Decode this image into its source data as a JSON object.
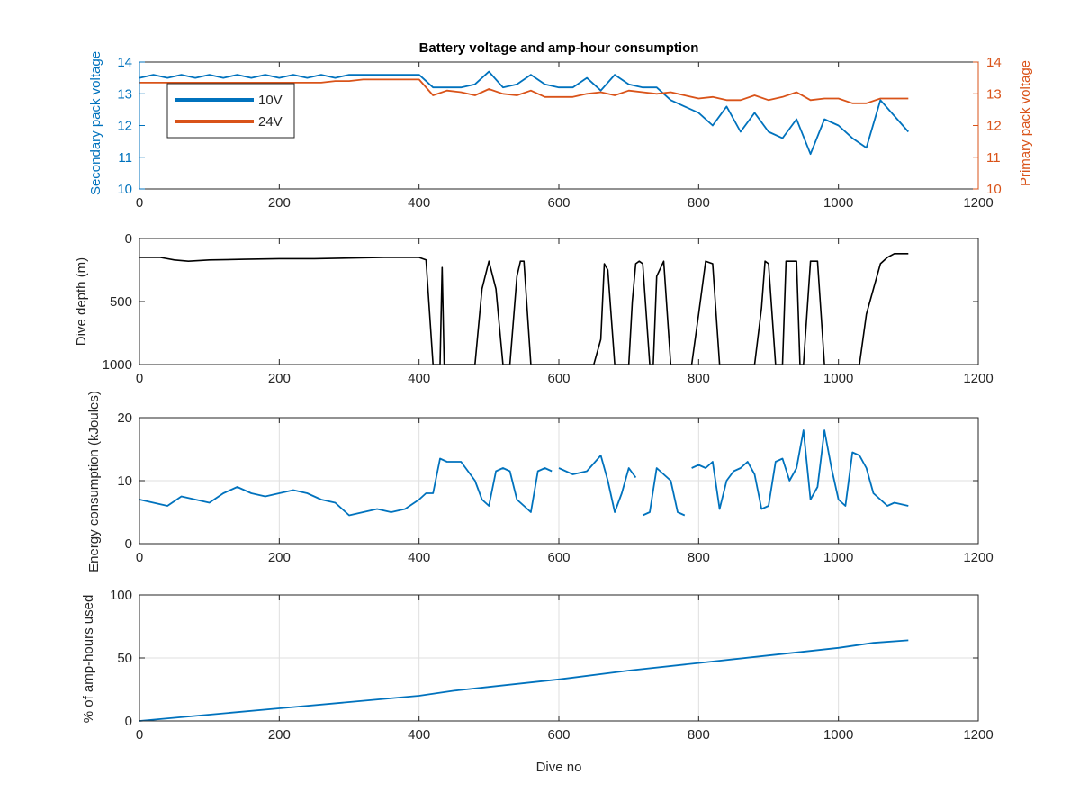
{
  "chart_data": [
    {
      "type": "line",
      "title": "Battery voltage and amp-hour consumption",
      "xlabel": "",
      "ylabel": "Secondary pack voltage",
      "ylabel_right": "Primary pack voltage",
      "xlim": [
        0,
        1200
      ],
      "ylim": [
        10,
        14
      ],
      "ylim_right": [
        10,
        14
      ],
      "xticks": [
        0,
        200,
        400,
        600,
        800,
        1000,
        1200
      ],
      "yticks": [
        10,
        11,
        12,
        13,
        14
      ],
      "yticks_right": [
        10,
        11,
        12,
        13,
        14
      ],
      "grid": false,
      "legend": "top-left",
      "series": [
        {
          "name": "10V",
          "color": "#0072BD",
          "axis": "left",
          "x": [
            0,
            20,
            40,
            60,
            80,
            100,
            120,
            140,
            160,
            180,
            200,
            220,
            240,
            260,
            280,
            300,
            320,
            340,
            360,
            380,
            400,
            420,
            440,
            460,
            480,
            500,
            520,
            540,
            560,
            580,
            600,
            620,
            640,
            660,
            680,
            700,
            720,
            740,
            760,
            780,
            800,
            820,
            840,
            860,
            880,
            900,
            920,
            940,
            960,
            980,
            1000,
            1020,
            1040,
            1060,
            1080,
            1100
          ],
          "y": [
            13.5,
            13.6,
            13.5,
            13.6,
            13.5,
            13.6,
            13.5,
            13.6,
            13.5,
            13.6,
            13.5,
            13.6,
            13.5,
            13.6,
            13.5,
            13.6,
            13.6,
            13.6,
            13.6,
            13.6,
            13.6,
            13.2,
            13.2,
            13.2,
            13.3,
            13.7,
            13.2,
            13.3,
            13.6,
            13.3,
            13.2,
            13.2,
            13.5,
            13.1,
            13.6,
            13.3,
            13.2,
            13.2,
            12.8,
            12.6,
            12.4,
            12.0,
            12.6,
            11.8,
            12.4,
            11.8,
            11.6,
            12.2,
            11.1,
            12.2,
            12.0,
            11.6,
            11.3,
            12.8,
            12.3,
            11.8
          ]
        },
        {
          "name": "24V",
          "color": "#D95319",
          "axis": "right",
          "x": [
            0,
            20,
            40,
            60,
            80,
            100,
            120,
            140,
            160,
            180,
            200,
            220,
            240,
            260,
            280,
            300,
            320,
            340,
            360,
            380,
            400,
            420,
            440,
            460,
            480,
            500,
            520,
            540,
            560,
            580,
            600,
            620,
            640,
            660,
            680,
            700,
            720,
            740,
            760,
            780,
            800,
            820,
            840,
            860,
            880,
            900,
            920,
            940,
            960,
            980,
            1000,
            1020,
            1040,
            1060,
            1080,
            1100
          ],
          "y": [
            13.35,
            13.35,
            13.35,
            13.35,
            13.35,
            13.35,
            13.35,
            13.35,
            13.35,
            13.35,
            13.35,
            13.35,
            13.35,
            13.35,
            13.4,
            13.4,
            13.45,
            13.45,
            13.45,
            13.45,
            13.45,
            12.95,
            13.1,
            13.05,
            12.95,
            13.15,
            13.0,
            12.95,
            13.1,
            12.9,
            12.9,
            12.9,
            13.0,
            13.05,
            12.95,
            13.1,
            13.05,
            13.0,
            13.05,
            12.95,
            12.85,
            12.9,
            12.8,
            12.8,
            12.95,
            12.8,
            12.9,
            13.05,
            12.8,
            12.85,
            12.85,
            12.7,
            12.7,
            12.85,
            12.85,
            12.85
          ]
        }
      ]
    },
    {
      "type": "line",
      "title": "",
      "xlabel": "",
      "ylabel": "Dive depth (m)",
      "xlim": [
        0,
        1200
      ],
      "ylim": [
        0,
        1000
      ],
      "y_reversed": true,
      "xticks": [
        0,
        200,
        400,
        600,
        800,
        1000,
        1200
      ],
      "yticks": [
        0,
        500,
        1000
      ],
      "grid": false,
      "series": [
        {
          "color": "#000000",
          "x": [
            0,
            10,
            30,
            50,
            70,
            100,
            150,
            200,
            250,
            300,
            350,
            380,
            400,
            410,
            420,
            425,
            430,
            433,
            436,
            440,
            450,
            470,
            480,
            490,
            500,
            510,
            520,
            530,
            540,
            545,
            550,
            560,
            565,
            570,
            580,
            600,
            620,
            640,
            650,
            660,
            665,
            670,
            680,
            690,
            700,
            705,
            710,
            715,
            720,
            730,
            735,
            740,
            750,
            760,
            770,
            780,
            790,
            800,
            810,
            820,
            830,
            840,
            850,
            860,
            870,
            880,
            890,
            895,
            900,
            910,
            920,
            925,
            930,
            940,
            945,
            950,
            960,
            965,
            970,
            980,
            1000,
            1010,
            1020,
            1030,
            1040,
            1050,
            1060,
            1070,
            1080,
            1100
          ],
          "y": [
            150,
            150,
            150,
            170,
            180,
            170,
            165,
            160,
            160,
            155,
            150,
            150,
            150,
            170,
            1000,
            1000,
            1000,
            230,
            1000,
            1000,
            1000,
            1000,
            1000,
            400,
            180,
            400,
            1000,
            1000,
            300,
            180,
            180,
            1000,
            1000,
            1000,
            1000,
            1000,
            1000,
            1000,
            1000,
            800,
            200,
            250,
            1000,
            1000,
            1000,
            500,
            200,
            180,
            200,
            1000,
            1000,
            300,
            180,
            1000,
            1000,
            1000,
            1000,
            600,
            180,
            200,
            1000,
            1000,
            1000,
            1000,
            1000,
            1000,
            550,
            180,
            200,
            1000,
            1000,
            180,
            180,
            180,
            1000,
            1000,
            180,
            180,
            180,
            1000,
            1000,
            1000,
            1000,
            1000,
            600,
            400,
            200,
            150,
            120,
            120
          ]
        }
      ]
    },
    {
      "type": "line",
      "title": "",
      "xlabel": "",
      "ylabel": "Energy consumption (kJoules)",
      "xlim": [
        0,
        1200
      ],
      "ylim": [
        0,
        20
      ],
      "xticks": [
        0,
        200,
        400,
        600,
        800,
        1000,
        1200
      ],
      "yticks": [
        0,
        10,
        20
      ],
      "grid": true,
      "series": [
        {
          "color": "#0072BD",
          "x": [
            0,
            20,
            40,
            60,
            80,
            100,
            120,
            140,
            160,
            180,
            200,
            220,
            240,
            260,
            280,
            300,
            320,
            340,
            360,
            380,
            400,
            410,
            420,
            430,
            440,
            460,
            480,
            490,
            500,
            510,
            520,
            530,
            540,
            550,
            560,
            570,
            580,
            590,
            null,
            600,
            620,
            640,
            660,
            670,
            680,
            690,
            700,
            710,
            null,
            720,
            730,
            740,
            750,
            760,
            770,
            780,
            null,
            790,
            800,
            810,
            820,
            830,
            840,
            850,
            860,
            870,
            880,
            890,
            900,
            910,
            920,
            930,
            940,
            950,
            960,
            970,
            980,
            990,
            1000,
            1010,
            1020,
            1030,
            1040,
            1050,
            1060,
            1070,
            1080,
            1100
          ],
          "y": [
            7,
            6.5,
            6,
            7.5,
            7,
            6.5,
            8,
            9,
            8,
            7.5,
            8,
            8.5,
            8,
            7,
            6.5,
            4.5,
            5,
            5.5,
            5,
            5.5,
            7,
            8,
            8,
            13.5,
            13,
            13,
            10,
            7,
            6,
            11.5,
            12,
            11.5,
            7,
            6,
            5,
            11.5,
            12,
            11.5,
            null,
            12,
            11,
            11.5,
            14,
            10,
            5,
            8,
            12,
            10.5,
            null,
            4.5,
            5,
            12,
            11,
            10,
            5,
            4.5,
            null,
            12,
            12.5,
            12,
            13,
            5.5,
            10,
            11.5,
            12,
            13,
            11,
            5.5,
            6,
            13,
            13.5,
            10,
            12,
            18,
            7,
            9,
            18,
            12,
            7,
            6,
            14.5,
            14,
            12,
            8,
            7,
            6,
            6.5,
            6
          ]
        }
      ]
    },
    {
      "type": "line",
      "title": "",
      "xlabel": "Dive no",
      "ylabel": "% of amp-hours used",
      "xlim": [
        0,
        1200
      ],
      "ylim": [
        0,
        100
      ],
      "xticks": [
        0,
        200,
        400,
        600,
        800,
        1000,
        1200
      ],
      "yticks": [
        0,
        50,
        100
      ],
      "grid": true,
      "series": [
        {
          "color": "#0072BD",
          "x": [
            0,
            100,
            200,
            300,
            400,
            450,
            500,
            600,
            700,
            800,
            900,
            1000,
            1050,
            1100
          ],
          "y": [
            0,
            5,
            10,
            15,
            20,
            24,
            27,
            33,
            40,
            46,
            52,
            58,
            62,
            64
          ]
        }
      ]
    }
  ]
}
